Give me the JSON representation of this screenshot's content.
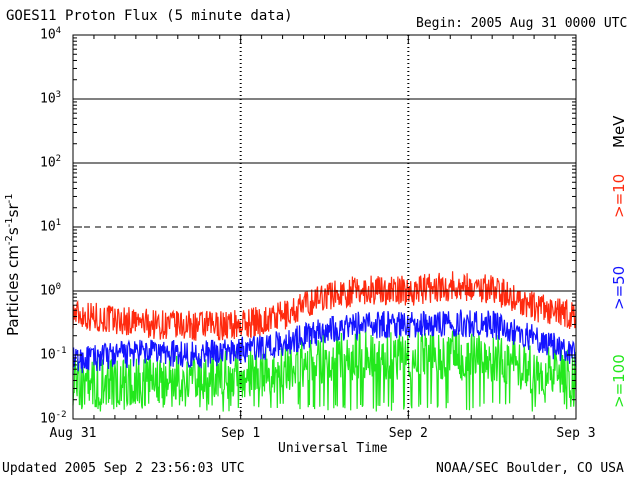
{
  "header": {
    "title": "GOES11 Proton Flux (5 minute data)",
    "begin": "Begin: 2005 Aug 31 0000 UTC"
  },
  "footer": {
    "updated": "Updated 2005 Sep  2 23:56:03 UTC",
    "credit": "NOAA/SEC Boulder, CO USA"
  },
  "legend": {
    "unit": "MeV",
    "ge10": ">=10",
    "ge50": ">=50",
    "ge100": ">=100"
  },
  "colors": {
    "ge10": "#ff2a0f",
    "ge50": "#1414ff",
    "ge100": "#22e81c",
    "grid": "#000000"
  },
  "chart_data": {
    "type": "line",
    "title": "GOES11 Proton Flux (5 minute data)",
    "xlabel": "Universal Time",
    "ylabel": "Particles cm-2 s-1 sr-1",
    "yscale": "log",
    "ylim": [
      0.01,
      10000
    ],
    "xlim_days": [
      0,
      3
    ],
    "x_ticks": [
      "Aug 31",
      "Sep 1",
      "Sep 2",
      "Sep 3"
    ],
    "y_ticks": [
      "10^-2",
      "10^-1",
      "10^0",
      "10^1",
      "10^2",
      "10^3",
      "10^4"
    ],
    "reference_lines": [
      {
        "y": 1000,
        "style": "solid"
      },
      {
        "y": 100,
        "style": "solid"
      },
      {
        "y": 10,
        "style": "dashed"
      },
      {
        "y": 1,
        "style": "solid"
      }
    ],
    "sample_interval": "5 minute",
    "series": [
      {
        "name": ">=10 MeV",
        "color": "#ff2a0f",
        "x": [
          "Aug 31 00h",
          "Aug 31 06h",
          "Aug 31 12h",
          "Aug 31 18h",
          "Sep 1 00h",
          "Sep 1 06h",
          "Sep 1 12h",
          "Sep 1 18h",
          "Sep 2 00h",
          "Sep 2 06h",
          "Sep 2 12h",
          "Sep 2 18h",
          "Sep 3 00h"
        ],
        "values": [
          0.45,
          0.35,
          0.3,
          0.28,
          0.3,
          0.4,
          0.85,
          1.05,
          1.0,
          1.2,
          1.1,
          0.55,
          0.4
        ]
      },
      {
        "name": ">=50 MeV",
        "color": "#1414ff",
        "x": [
          "Aug 31 00h",
          "Aug 31 06h",
          "Aug 31 12h",
          "Aug 31 18h",
          "Sep 1 00h",
          "Sep 1 06h",
          "Sep 1 12h",
          "Sep 1 18h",
          "Sep 2 00h",
          "Sep 2 06h",
          "Sep 2 12h",
          "Sep 2 18h",
          "Sep 3 00h"
        ],
        "values": [
          0.08,
          0.1,
          0.11,
          0.1,
          0.12,
          0.15,
          0.25,
          0.3,
          0.3,
          0.32,
          0.3,
          0.18,
          0.1
        ]
      },
      {
        "name": ">=100 MeV",
        "color": "#22e81c",
        "x": [
          "Aug 31 00h",
          "Aug 31 06h",
          "Aug 31 12h",
          "Aug 31 18h",
          "Sep 1 00h",
          "Sep 1 06h",
          "Sep 1 12h",
          "Sep 1 18h",
          "Sep 2 00h",
          "Sep 2 06h",
          "Sep 2 12h",
          "Sep 2 18h",
          "Sep 3 00h"
        ],
        "values": [
          0.04,
          0.035,
          0.04,
          0.045,
          0.05,
          0.06,
          0.09,
          0.1,
          0.1,
          0.1,
          0.09,
          0.06,
          0.05
        ]
      }
    ]
  }
}
